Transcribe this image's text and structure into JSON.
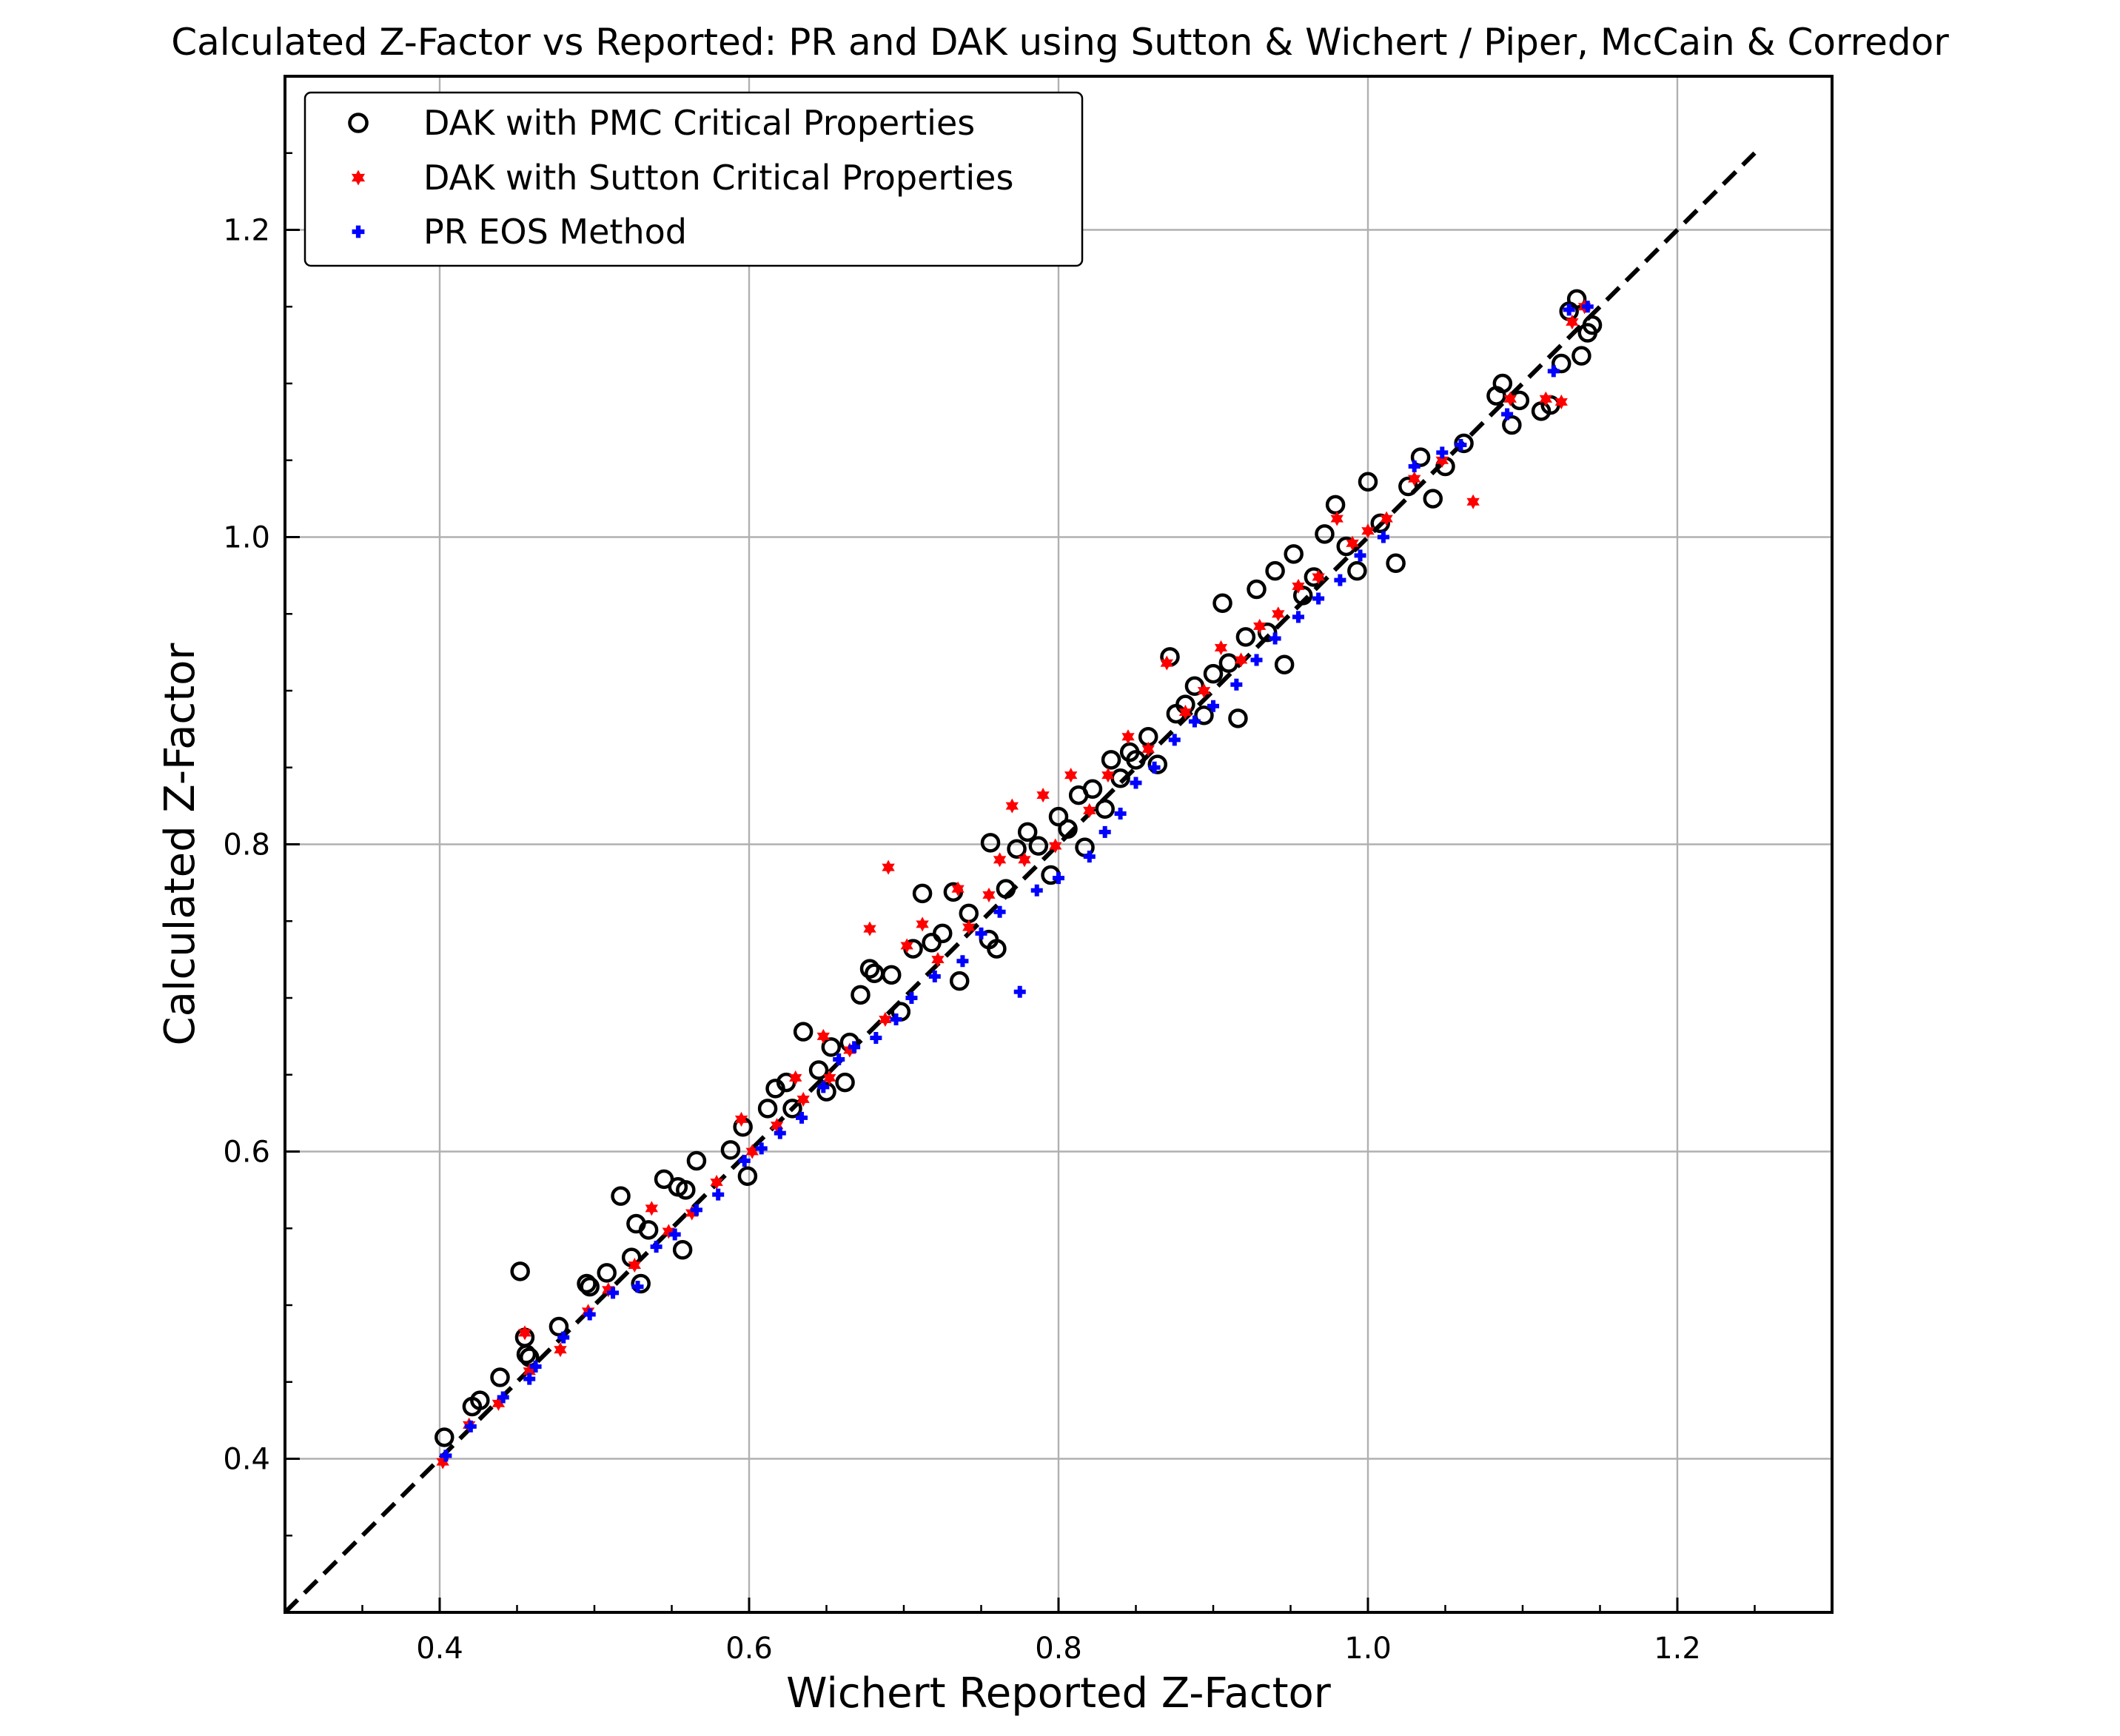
{
  "chart_data": {
    "type": "scatter",
    "title": "Calculated Z-Factor vs Reported: PR and DAK using Sutton & Wichert / Piper, McCain & Corredor",
    "xlabel": "Wichert Reported Z-Factor",
    "ylabel": "Calculated Z-Factor",
    "xlim": [
      0.3,
      1.3
    ],
    "ylim": [
      0.3,
      1.3
    ],
    "xticks": [
      0.4,
      0.6,
      0.8,
      1.0,
      1.2
    ],
    "yticks": [
      0.4,
      0.6,
      0.8,
      1.0,
      1.2
    ],
    "xtick_labels": [
      "0.4",
      "0.6",
      "0.8",
      "1.0",
      "1.2"
    ],
    "ytick_labels": [
      "0.4",
      "0.6",
      "0.8",
      "1.0",
      "1.2"
    ],
    "grid": true,
    "legend_position": "top-left",
    "reference_line": {
      "x": [
        0.3,
        1.25
      ],
      "y": [
        0.3,
        1.25
      ],
      "style": "dashed",
      "color": "#000000"
    },
    "series": [
      {
        "name": "DAK with PMC Critical Properties",
        "marker": "open-circle",
        "color": "#000000",
        "points": [
          [
            0.403,
            0.414
          ],
          [
            0.421,
            0.434
          ],
          [
            0.426,
            0.438
          ],
          [
            0.439,
            0.453
          ],
          [
            0.452,
            0.522
          ],
          [
            0.455,
            0.479
          ],
          [
            0.456,
            0.468
          ],
          [
            0.458,
            0.466
          ],
          [
            0.477,
            0.486
          ],
          [
            0.495,
            0.514
          ],
          [
            0.497,
            0.512
          ],
          [
            0.508,
            0.521
          ],
          [
            0.517,
            0.571
          ],
          [
            0.524,
            0.531
          ],
          [
            0.527,
            0.553
          ],
          [
            0.53,
            0.514
          ],
          [
            0.535,
            0.549
          ],
          [
            0.545,
            0.582
          ],
          [
            0.554,
            0.577
          ],
          [
            0.557,
            0.536
          ],
          [
            0.559,
            0.575
          ],
          [
            0.566,
            0.594
          ],
          [
            0.588,
            0.601
          ],
          [
            0.596,
            0.616
          ],
          [
            0.599,
            0.584
          ],
          [
            0.612,
            0.628
          ],
          [
            0.617,
            0.641
          ],
          [
            0.624,
            0.645
          ],
          [
            0.628,
            0.628
          ],
          [
            0.635,
            0.678
          ],
          [
            0.645,
            0.653
          ],
          [
            0.65,
            0.639
          ],
          [
            0.653,
            0.668
          ],
          [
            0.662,
            0.645
          ],
          [
            0.665,
            0.671
          ],
          [
            0.672,
            0.702
          ],
          [
            0.678,
            0.719
          ],
          [
            0.681,
            0.716
          ],
          [
            0.692,
            0.715
          ],
          [
            0.698,
            0.691
          ],
          [
            0.706,
            0.732
          ],
          [
            0.712,
            0.768
          ],
          [
            0.718,
            0.736
          ],
          [
            0.725,
            0.742
          ],
          [
            0.732,
            0.769
          ],
          [
            0.736,
            0.711
          ],
          [
            0.742,
            0.755
          ],
          [
            0.755,
            0.738
          ],
          [
            0.756,
            0.801
          ],
          [
            0.76,
            0.732
          ],
          [
            0.766,
            0.771
          ],
          [
            0.773,
            0.797
          ],
          [
            0.78,
            0.808
          ],
          [
            0.787,
            0.799
          ],
          [
            0.795,
            0.78
          ],
          [
            0.8,
            0.818
          ],
          [
            0.806,
            0.81
          ],
          [
            0.813,
            0.832
          ],
          [
            0.817,
            0.798
          ],
          [
            0.822,
            0.836
          ],
          [
            0.83,
            0.823
          ],
          [
            0.834,
            0.855
          ],
          [
            0.84,
            0.843
          ],
          [
            0.846,
            0.86
          ],
          [
            0.85,
            0.855
          ],
          [
            0.858,
            0.87
          ],
          [
            0.864,
            0.852
          ],
          [
            0.872,
            0.922
          ],
          [
            0.876,
            0.885
          ],
          [
            0.882,
            0.891
          ],
          [
            0.888,
            0.903
          ],
          [
            0.894,
            0.884
          ],
          [
            0.9,
            0.911
          ],
          [
            0.906,
            0.957
          ],
          [
            0.91,
            0.918
          ],
          [
            0.916,
            0.882
          ],
          [
            0.921,
            0.935
          ],
          [
            0.928,
            0.966
          ],
          [
            0.935,
            0.938
          ],
          [
            0.94,
            0.978
          ],
          [
            0.946,
            0.917
          ],
          [
            0.952,
            0.989
          ],
          [
            0.958,
            0.962
          ],
          [
            0.965,
            0.974
          ],
          [
            0.972,
            1.002
          ],
          [
            0.979,
            1.021
          ],
          [
            0.986,
            0.994
          ],
          [
            0.993,
            0.978
          ],
          [
            1.0,
            1.036
          ],
          [
            1.008,
            1.009
          ],
          [
            1.018,
            0.983
          ],
          [
            1.026,
            1.033
          ],
          [
            1.034,
            1.052
          ],
          [
            1.042,
            1.025
          ],
          [
            1.05,
            1.046
          ],
          [
            1.062,
            1.061
          ],
          [
            1.083,
            1.092
          ],
          [
            1.087,
            1.1
          ],
          [
            1.093,
            1.073
          ],
          [
            1.098,
            1.089
          ],
          [
            1.112,
            1.082
          ],
          [
            1.118,
            1.086
          ],
          [
            1.125,
            1.113
          ],
          [
            1.13,
            1.147
          ],
          [
            1.135,
            1.155
          ],
          [
            1.138,
            1.118
          ],
          [
            1.142,
            1.133
          ],
          [
            1.145,
            1.138
          ]
        ]
      },
      {
        "name": "DAK with Sutton Critical Properties",
        "marker": "filled-star",
        "color": "#ff0000",
        "points": [
          [
            0.402,
            0.398
          ],
          [
            0.419,
            0.422
          ],
          [
            0.438,
            0.436
          ],
          [
            0.455,
            0.482
          ],
          [
            0.458,
            0.457
          ],
          [
            0.478,
            0.471
          ],
          [
            0.496,
            0.496
          ],
          [
            0.509,
            0.51
          ],
          [
            0.526,
            0.526
          ],
          [
            0.537,
            0.563
          ],
          [
            0.548,
            0.548
          ],
          [
            0.563,
            0.56
          ],
          [
            0.579,
            0.58
          ],
          [
            0.595,
            0.621
          ],
          [
            0.602,
            0.6
          ],
          [
            0.618,
            0.617
          ],
          [
            0.63,
            0.648
          ],
          [
            0.635,
            0.634
          ],
          [
            0.648,
            0.675
          ],
          [
            0.652,
            0.648
          ],
          [
            0.665,
            0.666
          ],
          [
            0.678,
            0.745
          ],
          [
            0.688,
            0.686
          ],
          [
            0.69,
            0.785
          ],
          [
            0.702,
            0.734
          ],
          [
            0.712,
            0.748
          ],
          [
            0.722,
            0.725
          ],
          [
            0.735,
            0.771
          ],
          [
            0.742,
            0.746
          ],
          [
            0.755,
            0.767
          ],
          [
            0.762,
            0.79
          ],
          [
            0.77,
            0.825
          ],
          [
            0.778,
            0.79
          ],
          [
            0.79,
            0.832
          ],
          [
            0.798,
            0.799
          ],
          [
            0.808,
            0.845
          ],
          [
            0.82,
            0.822
          ],
          [
            0.832,
            0.845
          ],
          [
            0.845,
            0.87
          ],
          [
            0.858,
            0.862
          ],
          [
            0.87,
            0.918
          ],
          [
            0.882,
            0.886
          ],
          [
            0.894,
            0.9
          ],
          [
            0.905,
            0.928
          ],
          [
            0.918,
            0.92
          ],
          [
            0.93,
            0.942
          ],
          [
            0.942,
            0.95
          ],
          [
            0.955,
            0.968
          ],
          [
            0.968,
            0.974
          ],
          [
            0.98,
            1.012
          ],
          [
            0.99,
            0.996
          ],
          [
            1.0,
            1.004
          ],
          [
            1.012,
            1.012
          ],
          [
            1.03,
            1.038
          ],
          [
            1.048,
            1.05
          ],
          [
            1.068,
            1.023
          ],
          [
            1.092,
            1.09
          ],
          [
            1.115,
            1.09
          ],
          [
            1.125,
            1.088
          ],
          [
            1.132,
            1.14
          ],
          [
            1.14,
            1.15
          ]
        ]
      },
      {
        "name": "PR EOS Method",
        "marker": "filled-plus",
        "color": "#0000ff",
        "points": [
          [
            0.404,
            0.402
          ],
          [
            0.42,
            0.421
          ],
          [
            0.441,
            0.44
          ],
          [
            0.458,
            0.452
          ],
          [
            0.462,
            0.46
          ],
          [
            0.48,
            0.479
          ],
          [
            0.497,
            0.494
          ],
          [
            0.512,
            0.508
          ],
          [
            0.528,
            0.512
          ],
          [
            0.54,
            0.538
          ],
          [
            0.552,
            0.546
          ],
          [
            0.566,
            0.562
          ],
          [
            0.58,
            0.572
          ],
          [
            0.597,
            0.594
          ],
          [
            0.608,
            0.602
          ],
          [
            0.62,
            0.612
          ],
          [
            0.634,
            0.622
          ],
          [
            0.648,
            0.642
          ],
          [
            0.658,
            0.66
          ],
          [
            0.668,
            0.668
          ],
          [
            0.682,
            0.674
          ],
          [
            0.695,
            0.686
          ],
          [
            0.705,
            0.7
          ],
          [
            0.72,
            0.714
          ],
          [
            0.738,
            0.724
          ],
          [
            0.75,
            0.742
          ],
          [
            0.762,
            0.756
          ],
          [
            0.775,
            0.704
          ],
          [
            0.786,
            0.77
          ],
          [
            0.8,
            0.778
          ],
          [
            0.82,
            0.792
          ],
          [
            0.83,
            0.808
          ],
          [
            0.84,
            0.82
          ],
          [
            0.85,
            0.84
          ],
          [
            0.862,
            0.85
          ],
          [
            0.875,
            0.868
          ],
          [
            0.888,
            0.88
          ],
          [
            0.9,
            0.89
          ],
          [
            0.915,
            0.904
          ],
          [
            0.928,
            0.92
          ],
          [
            0.94,
            0.934
          ],
          [
            0.955,
            0.948
          ],
          [
            0.968,
            0.96
          ],
          [
            0.982,
            0.972
          ],
          [
            0.995,
            0.988
          ],
          [
            1.01,
            1.0
          ],
          [
            1.03,
            1.046
          ],
          [
            1.048,
            1.055
          ],
          [
            1.06,
            1.06
          ],
          [
            1.09,
            1.08
          ],
          [
            1.12,
            1.108
          ],
          [
            1.13,
            1.148
          ],
          [
            1.142,
            1.15
          ]
        ]
      }
    ]
  }
}
